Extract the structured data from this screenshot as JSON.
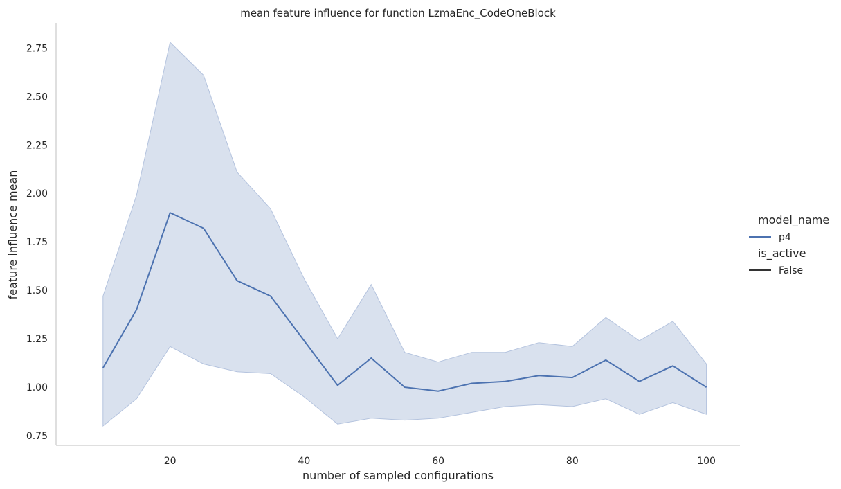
{
  "chart_data": {
    "type": "line",
    "title": "mean feature influence for function LzmaEnc_CodeOneBlock",
    "xlabel": "number of sampled configurations",
    "ylabel": "feature influence mean",
    "xlim": [
      3,
      105
    ],
    "ylim": [
      0.7,
      2.88
    ],
    "xticks": [
      20,
      40,
      60,
      80,
      100
    ],
    "yticks": [
      0.75,
      1.0,
      1.25,
      1.5,
      1.75,
      2.0,
      2.25,
      2.5,
      2.75
    ],
    "ytick_labels": [
      "0.75",
      "1.00",
      "1.25",
      "1.50",
      "1.75",
      "2.00",
      "2.25",
      "2.50",
      "2.75"
    ],
    "grid": false,
    "legend": {
      "placement": "right",
      "groups": [
        {
          "title": "model_name",
          "entries": [
            {
              "label": "p4",
              "color": "#4c72b0"
            }
          ]
        },
        {
          "title": "is_active",
          "entries": [
            {
              "label": "False",
              "color": "#333333"
            }
          ]
        }
      ]
    },
    "series": [
      {
        "name": "p4",
        "color": "#4c72b0",
        "band_color": "#b4c3de",
        "x": [
          10,
          15,
          20,
          25,
          30,
          35,
          40,
          45,
          50,
          55,
          60,
          65,
          70,
          75,
          80,
          85,
          90,
          95,
          100
        ],
        "values": [
          1.1,
          1.4,
          1.9,
          1.82,
          1.55,
          1.47,
          1.24,
          1.01,
          1.15,
          1.0,
          0.98,
          1.02,
          1.03,
          1.06,
          1.05,
          1.14,
          1.03,
          1.11,
          1.0
        ],
        "ci_upper": [
          1.47,
          1.99,
          2.78,
          2.61,
          2.11,
          1.92,
          1.56,
          1.25,
          1.53,
          1.18,
          1.13,
          1.18,
          1.18,
          1.23,
          1.21,
          1.36,
          1.24,
          1.34,
          1.12
        ],
        "ci_lower": [
          0.8,
          0.94,
          1.21,
          1.12,
          1.08,
          1.07,
          0.95,
          0.81,
          0.84,
          0.83,
          0.84,
          0.87,
          0.9,
          0.91,
          0.9,
          0.94,
          0.86,
          0.92,
          0.86
        ]
      }
    ]
  }
}
